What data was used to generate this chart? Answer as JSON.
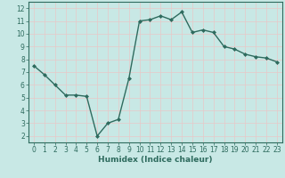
{
  "x": [
    0,
    1,
    2,
    3,
    4,
    5,
    6,
    7,
    8,
    9,
    10,
    11,
    12,
    13,
    14,
    15,
    16,
    17,
    18,
    19,
    20,
    21,
    22,
    23
  ],
  "y": [
    7.5,
    6.8,
    6.0,
    5.2,
    5.2,
    5.1,
    2.0,
    3.0,
    3.3,
    6.5,
    11.0,
    11.1,
    11.4,
    11.1,
    11.7,
    10.1,
    10.3,
    10.1,
    9.0,
    8.8,
    8.4,
    8.2,
    8.1,
    7.8
  ],
  "line_color": "#2e6b5e",
  "marker": "D",
  "marker_size": 2.0,
  "bg_color": "#c8e8e5",
  "grid_color": "#e8c8c8",
  "xlabel": "Humidex (Indice chaleur)",
  "xlim": [
    -0.5,
    23.5
  ],
  "ylim": [
    1.5,
    12.5
  ],
  "yticks": [
    2,
    3,
    4,
    5,
    6,
    7,
    8,
    9,
    10,
    11,
    12
  ],
  "xticks": [
    0,
    1,
    2,
    3,
    4,
    5,
    6,
    7,
    8,
    9,
    10,
    11,
    12,
    13,
    14,
    15,
    16,
    17,
    18,
    19,
    20,
    21,
    22,
    23
  ],
  "tick_label_fontsize": 5.5,
  "xlabel_fontsize": 6.5,
  "line_width": 1.0
}
